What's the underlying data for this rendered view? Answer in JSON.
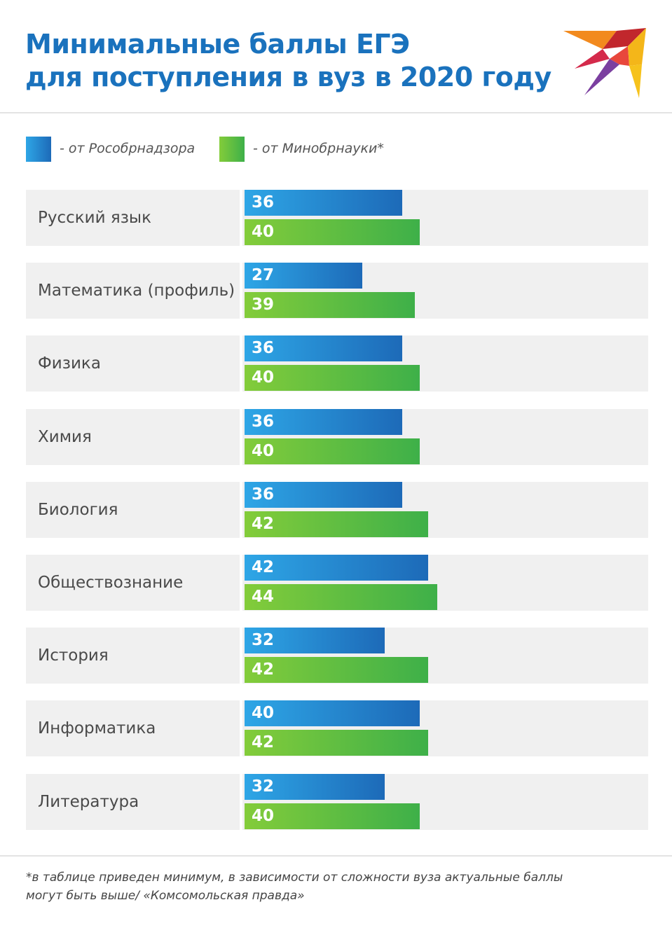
{
  "header": {
    "title_line1": "Минимальные баллы ЕГЭ",
    "title_line2": "для поступления в вуз в 2020 году"
  },
  "colors": {
    "title": "#1a72bd",
    "series_blue": "#1d6ab8",
    "series_green": "#3eb049",
    "row_background": "#f0f0f0"
  },
  "chart_data": {
    "type": "bar",
    "orientation": "horizontal",
    "title": "Минимальные баллы ЕГЭ для поступления в вуз в 2020 году",
    "categories": [
      "Русский язык",
      "Математика (профиль)",
      "Физика",
      "Химия",
      "Биология",
      "Обществознание",
      "История",
      "Информатика",
      "Литература"
    ],
    "series": [
      {
        "name": "- от Рособрнадзора",
        "color": "#1d6ab8",
        "values": [
          36,
          27,
          36,
          36,
          36,
          42,
          32,
          40,
          32
        ]
      },
      {
        "name": "- от Минобрнауки*",
        "color": "#3eb049",
        "values": [
          40,
          39,
          40,
          40,
          42,
          44,
          42,
          42,
          40
        ]
      }
    ],
    "legend_placement": "top-left",
    "grid": false
  },
  "footnote": {
    "line1": "*в таблице приведен минимум, в зависимости от сложности вуза актуальные баллы",
    "line2": "могут быть выше/ «Комсомольская правда»"
  },
  "logo_icon": "swallow-bird-logo"
}
